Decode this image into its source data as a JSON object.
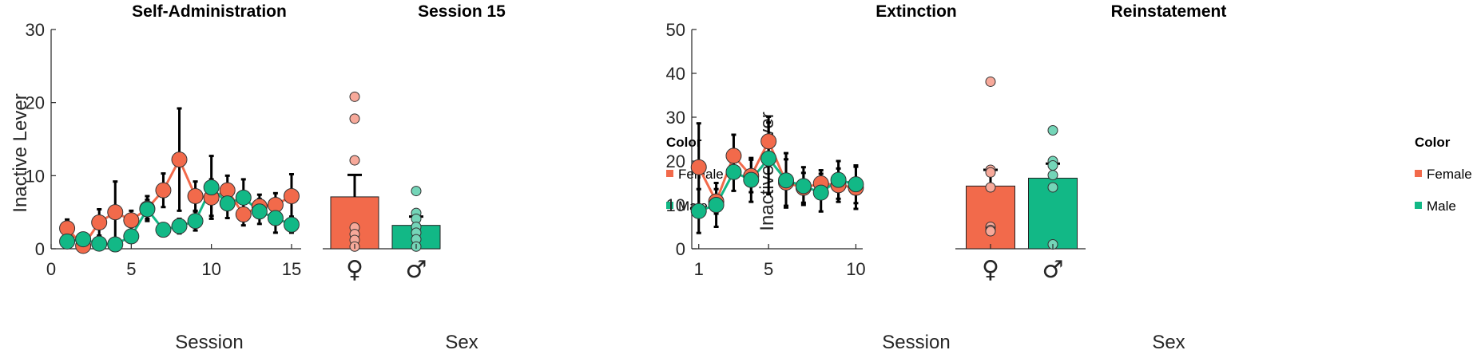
{
  "colors": {
    "female": "#F26A4B",
    "male": "#12B886",
    "female_light": "#F7A99A",
    "male_light": "#74D5B8"
  },
  "legend": {
    "title": "Color",
    "female": "Female",
    "male": "Male"
  },
  "chart_data": [
    {
      "type": "line",
      "title": "Self-Administration",
      "xlabel": "Session",
      "ylabel": "Inactive Lever",
      "xlim": [
        0,
        15.5
      ],
      "ylim": [
        0,
        30
      ],
      "xticks": [
        0,
        5,
        10,
        15
      ],
      "yticks": [
        0,
        10,
        20,
        30
      ],
      "x": [
        1,
        2,
        3,
        4,
        5,
        6,
        7,
        8,
        9,
        10,
        11,
        12,
        13,
        14,
        15
      ],
      "series": [
        {
          "name": "Female",
          "values": [
            2.8,
            0.4,
            3.6,
            5.0,
            3.9,
            5.5,
            8.0,
            12.2,
            7.2,
            7.0,
            8.0,
            4.7,
            5.8,
            6.0,
            7.2
          ],
          "err": [
            1.2,
            0.5,
            1.8,
            4.2,
            1.3,
            1.7,
            2.3,
            7.0,
            2.0,
            2.5,
            2.0,
            1.5,
            1.6,
            1.6,
            3.0
          ]
        },
        {
          "name": "Male",
          "values": [
            1.0,
            1.3,
            0.7,
            0.6,
            1.7,
            5.4,
            2.6,
            3.1,
            3.8,
            8.4,
            6.2,
            7.0,
            5.1,
            4.2,
            3.3
          ],
          "err": [
            0.6,
            0.6,
            0.4,
            0.3,
            0.6,
            1.3,
            0.8,
            1.0,
            1.3,
            4.3,
            2.0,
            2.5,
            1.7,
            2.0,
            1.1
          ]
        }
      ]
    },
    {
      "type": "bar",
      "title": "Session 15",
      "xlabel": "Sex",
      "categories": [
        "♀",
        "♂"
      ],
      "ylim": [
        0,
        30
      ],
      "values": [
        7.1,
        3.2
      ],
      "err": [
        3.0,
        1.2
      ],
      "points": [
        [
          20.8,
          17.8,
          12.1,
          2.9,
          2.0,
          1.2,
          0.3
        ],
        [
          7.9,
          4.9,
          4.1,
          3.0,
          2.2,
          1.3,
          0.3
        ]
      ]
    },
    {
      "type": "line",
      "title": "Extinction",
      "xlabel": "Session",
      "ylabel": "Inactive Lever",
      "xlim": [
        0.6,
        10.3
      ],
      "ylim": [
        0,
        50
      ],
      "xticks": [
        1,
        5,
        10
      ],
      "yticks": [
        0,
        10,
        20,
        30,
        40,
        50
      ],
      "x": [
        1,
        2,
        3,
        4,
        5,
        6,
        7,
        8,
        9,
        10
      ],
      "series": [
        {
          "name": "Female",
          "values": [
            18.6,
            10.8,
            21.2,
            16.6,
            24.5,
            15.1,
            13.9,
            14.9,
            14.5,
            13.9
          ],
          "err": [
            10.0,
            2.8,
            4.8,
            3.7,
            5.6,
            5.3,
            3.4,
            3.0,
            3.8,
            4.8
          ]
        },
        {
          "name": "Male",
          "values": [
            8.6,
            10.0,
            17.5,
            15.7,
            20.6,
            15.6,
            14.3,
            12.8,
            15.7,
            14.7
          ],
          "err": [
            5.0,
            5.0,
            4.3,
            5.0,
            8.2,
            6.2,
            4.3,
            4.3,
            4.3,
            4.3
          ]
        }
      ]
    },
    {
      "type": "bar",
      "title": "Reinstatement",
      "xlabel": "Sex",
      "categories": [
        "♀",
        "♂"
      ],
      "ylim": [
        0,
        50
      ],
      "values": [
        14.3,
        16.1
      ],
      "err": [
        3.7,
        3.3
      ],
      "points": [
        [
          38.1,
          18.0,
          17.4,
          14.0,
          5.0,
          4.3,
          4.0
        ],
        [
          27.0,
          20.0,
          19.0,
          16.8,
          14.0,
          1.0
        ]
      ]
    }
  ]
}
